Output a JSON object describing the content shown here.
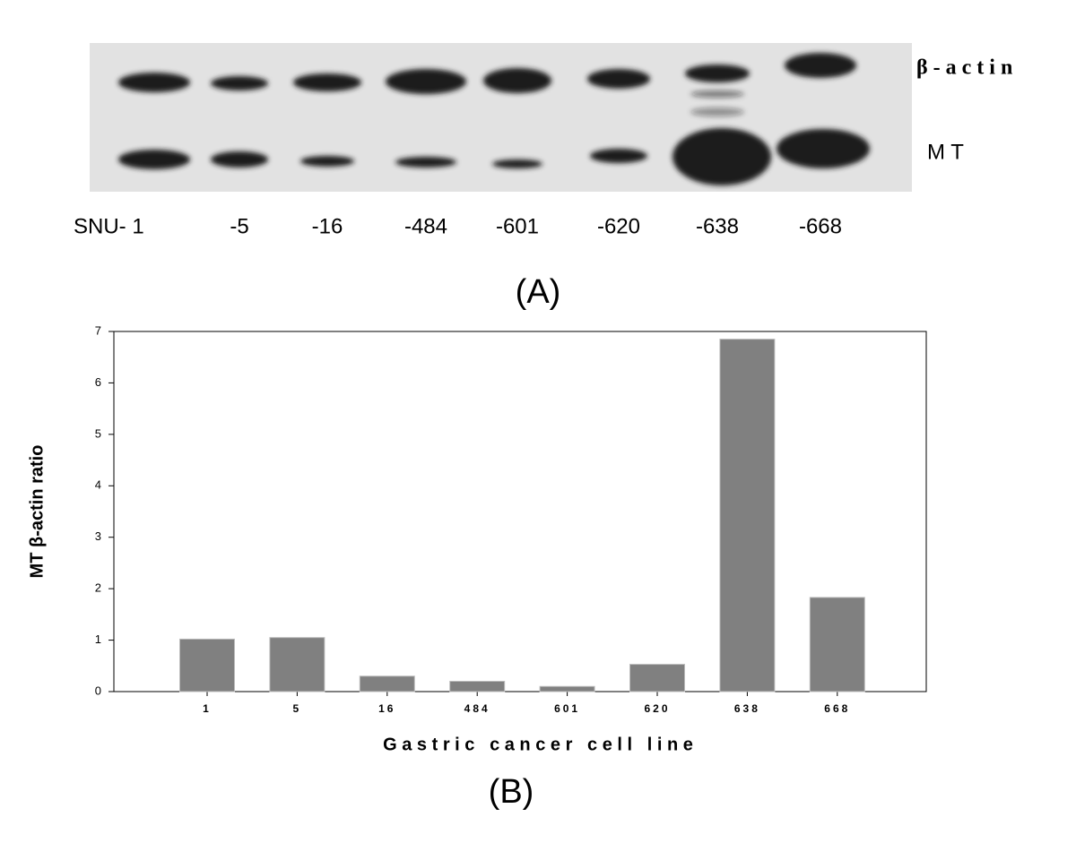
{
  "blot": {
    "lane_labels": [
      "SNU- 1",
      "-5",
      "-16",
      "-484",
      "-601",
      "-620",
      "-638",
      "-668"
    ],
    "band_labels": [
      "β - a c t i n",
      "M T"
    ],
    "panel_label": "(A)"
  },
  "chart_data": {
    "type": "bar",
    "panel_label": "(B)",
    "x_label": "G a s t r i c   c a n c e r   c e l l   l i n e",
    "y_label": "MT β-actin ratio",
    "categories": [
      "1",
      "5",
      "16",
      "484",
      "601",
      "620",
      "638",
      "668"
    ],
    "values": [
      1.02,
      1.05,
      0.3,
      0.2,
      0.1,
      0.53,
      6.85,
      1.83
    ],
    "color": "#808080",
    "ylim": [
      0,
      7
    ],
    "yticks": [
      0,
      1,
      2,
      3,
      4,
      5,
      6,
      7
    ],
    "grid": false
  }
}
